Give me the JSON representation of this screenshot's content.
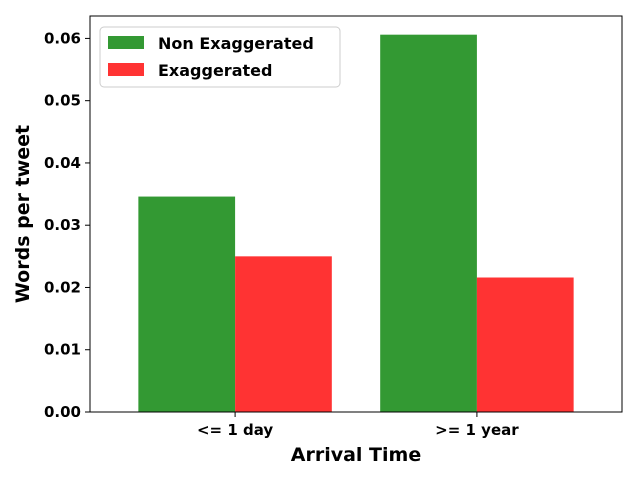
{
  "chart_data": {
    "type": "bar",
    "categories": [
      "<= 1 day",
      ">= 1 year"
    ],
    "series": [
      {
        "name": "Non Exaggerated",
        "color": "#339933",
        "values": [
          0.0346,
          0.0606
        ]
      },
      {
        "name": "Exaggerated",
        "color": "#ff3333",
        "values": [
          0.025,
          0.0216
        ]
      }
    ],
    "xlabel": "Arrival Time",
    "ylabel": "Words per tweet",
    "ylim": [
      0,
      0.0636
    ],
    "yticks": [
      {
        "value": 0.0,
        "label": "0.00"
      },
      {
        "value": 0.01,
        "label": "0.01"
      },
      {
        "value": 0.02,
        "label": "0.02"
      },
      {
        "value": 0.03,
        "label": "0.03"
      },
      {
        "value": 0.04,
        "label": "0.04"
      },
      {
        "value": 0.05,
        "label": "0.05"
      },
      {
        "value": 0.06,
        "label": "0.06"
      }
    ],
    "grid": false,
    "legend_position": "top-left"
  }
}
